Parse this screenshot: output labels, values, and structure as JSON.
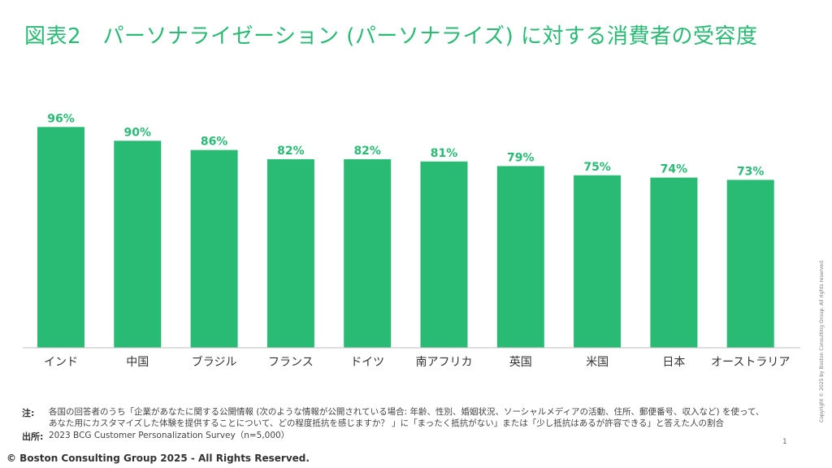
{
  "title": "図表2　パーソナライゼーション (パーソナライズ) に対する消費者の受容度",
  "chart_data": {
    "type": "bar",
    "categories": [
      "インド",
      "中国",
      "ブラジル",
      "フランス",
      "ドイツ",
      "南アフリカ",
      "英国",
      "米国",
      "日本",
      "オーストラリア"
    ],
    "values": [
      96,
      90,
      86,
      82,
      82,
      81,
      79,
      75,
      74,
      73
    ],
    "value_labels": [
      "96%",
      "90%",
      "86%",
      "82%",
      "82%",
      "81%",
      "79%",
      "75%",
      "74%",
      "73%"
    ],
    "ylim": [
      0,
      100
    ],
    "bar_color": "#29ba74",
    "label_color": "#29ba74",
    "grid": false
  },
  "notes": {
    "note_label": "注:",
    "note_line1": "各国の回答者のうち「企業があなたに関する公開情報 (次のような情報が公開されている場合: 年齢、性別、婚姻状況、ソーシャルメディアの活動、住所、郵便番号、収入など) を使って、",
    "note_line2": "あなた用にカスタマイズした体験を提供することについて、どの程度抵抗を感じますか？ 」に「まったく抵抗がない」または「少し抵抗はあるが許容できる」と答えた人の割合",
    "source_label": "出所:",
    "source_text": "2023 BCG Customer Personalization Survey（n=5,000）"
  },
  "page_number": "1",
  "copyright": "© Boston Consulting Group 2025 - All Rights Reserved.",
  "side_copyright": "Copyright © 2025 by Boston Consulting Group. All rights reserved."
}
